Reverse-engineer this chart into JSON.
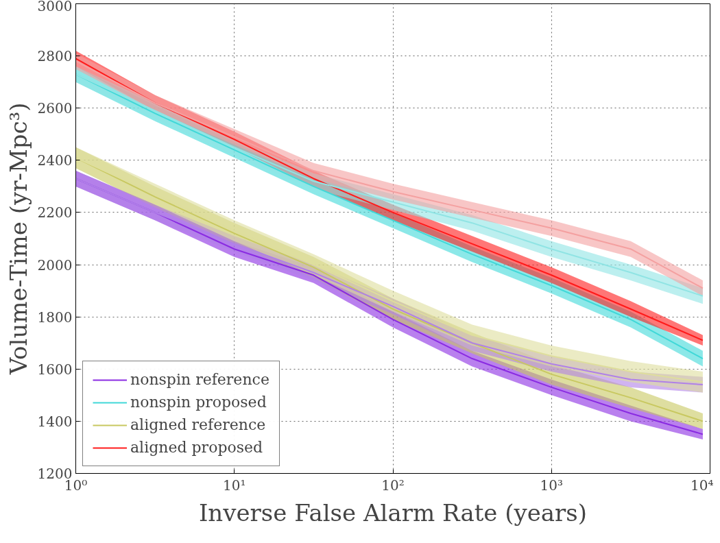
{
  "chart_data": {
    "type": "line",
    "xlabel": "Inverse False Alarm Rate (years)",
    "ylabel": "Volume-Time (yr-Mpc³)",
    "log": "x",
    "xlim": [
      1,
      10000
    ],
    "ylim": [
      1200,
      3000
    ],
    "xticks": [
      {
        "value": 1,
        "label": "10⁰"
      },
      {
        "value": 10,
        "label": "10¹"
      },
      {
        "value": 100,
        "label": "10²"
      },
      {
        "value": 1000,
        "label": "10³"
      },
      {
        "value": 10000,
        "label": "10⁴"
      }
    ],
    "yticks": [
      1200,
      1400,
      1600,
      1800,
      2000,
      2200,
      2400,
      2600,
      2800,
      3000
    ],
    "grid": true,
    "legend": "bottom left",
    "line_style": "solid",
    "marker": "none",
    "x": [
      1,
      3.16,
      10,
      31.6,
      100,
      316,
      1000,
      3160,
      9000
    ],
    "series": [
      {
        "name": "nonspin reference",
        "color": "#8a2be2",
        "values": [
          2330,
          2200,
          2060,
          1960,
          1790,
          1640,
          1530,
          1430,
          1350
        ],
        "lower": [
          2300,
          2170,
          2030,
          1930,
          1760,
          1610,
          1500,
          1400,
          1330
        ],
        "upper": [
          2360,
          2230,
          2090,
          1990,
          1820,
          1670,
          1560,
          1460,
          1370
        ]
      },
      {
        "name": "nonspin proposed",
        "color": "#40d8d8",
        "values": [
          2730,
          2580,
          2440,
          2300,
          2170,
          2040,
          1920,
          1790,
          1640
        ],
        "lower": [
          2700,
          2550,
          2410,
          2270,
          2140,
          2010,
          1890,
          1760,
          1610
        ],
        "upper": [
          2760,
          2610,
          2470,
          2330,
          2200,
          2070,
          1950,
          1820,
          1670
        ]
      },
      {
        "name": "aligned reference",
        "color": "#c8c860",
        "values": [
          2410,
          2260,
          2120,
          1990,
          1830,
          1700,
          1580,
          1490,
          1400
        ],
        "lower": [
          2370,
          2220,
          2080,
          1950,
          1790,
          1660,
          1540,
          1450,
          1370
        ],
        "upper": [
          2450,
          2300,
          2160,
          2030,
          1870,
          1740,
          1620,
          1530,
          1430
        ]
      },
      {
        "name": "aligned proposed",
        "color": "#ff1a1a",
        "values": [
          2790,
          2620,
          2480,
          2330,
          2200,
          2080,
          1960,
          1830,
          1710
        ],
        "lower": [
          2760,
          2590,
          2450,
          2300,
          2170,
          2050,
          1930,
          1800,
          1690
        ],
        "upper": [
          2820,
          2650,
          2510,
          2360,
          2230,
          2110,
          1990,
          1860,
          1730
        ]
      },
      {
        "color": "#b080e8",
        "values": [
          2330,
          2200,
          2080,
          1970,
          1840,
          1700,
          1620,
          1560,
          1540
        ],
        "lower": [
          2300,
          2170,
          2050,
          1940,
          1810,
          1670,
          1590,
          1530,
          1510
        ],
        "upper": [
          2360,
          2230,
          2110,
          2000,
          1870,
          1730,
          1650,
          1590,
          1570
        ]
      },
      {
        "color": "#90e4e4",
        "values": [
          2730,
          2590,
          2450,
          2320,
          2240,
          2160,
          2060,
          1970,
          1880
        ],
        "lower": [
          2700,
          2560,
          2420,
          2290,
          2210,
          2130,
          2030,
          1940,
          1850
        ],
        "upper": [
          2760,
          2620,
          2480,
          2350,
          2270,
          2190,
          2090,
          2000,
          1910
        ]
      },
      {
        "color": "#dede9c",
        "values": [
          2410,
          2270,
          2130,
          2000,
          1860,
          1730,
          1650,
          1590,
          1550
        ],
        "lower": [
          2370,
          2230,
          2090,
          1960,
          1820,
          1690,
          1610,
          1550,
          1510
        ],
        "upper": [
          2450,
          2310,
          2170,
          2040,
          1900,
          1770,
          1690,
          1630,
          1590
        ]
      },
      {
        "color": "#f4a0a0",
        "values": [
          2780,
          2620,
          2490,
          2360,
          2280,
          2210,
          2140,
          2060,
          1910
        ],
        "lower": [
          2750,
          2590,
          2460,
          2330,
          2250,
          2180,
          2110,
          2030,
          1880
        ],
        "upper": [
          2810,
          2650,
          2520,
          2390,
          2310,
          2240,
          2170,
          2090,
          1940
        ]
      }
    ]
  }
}
